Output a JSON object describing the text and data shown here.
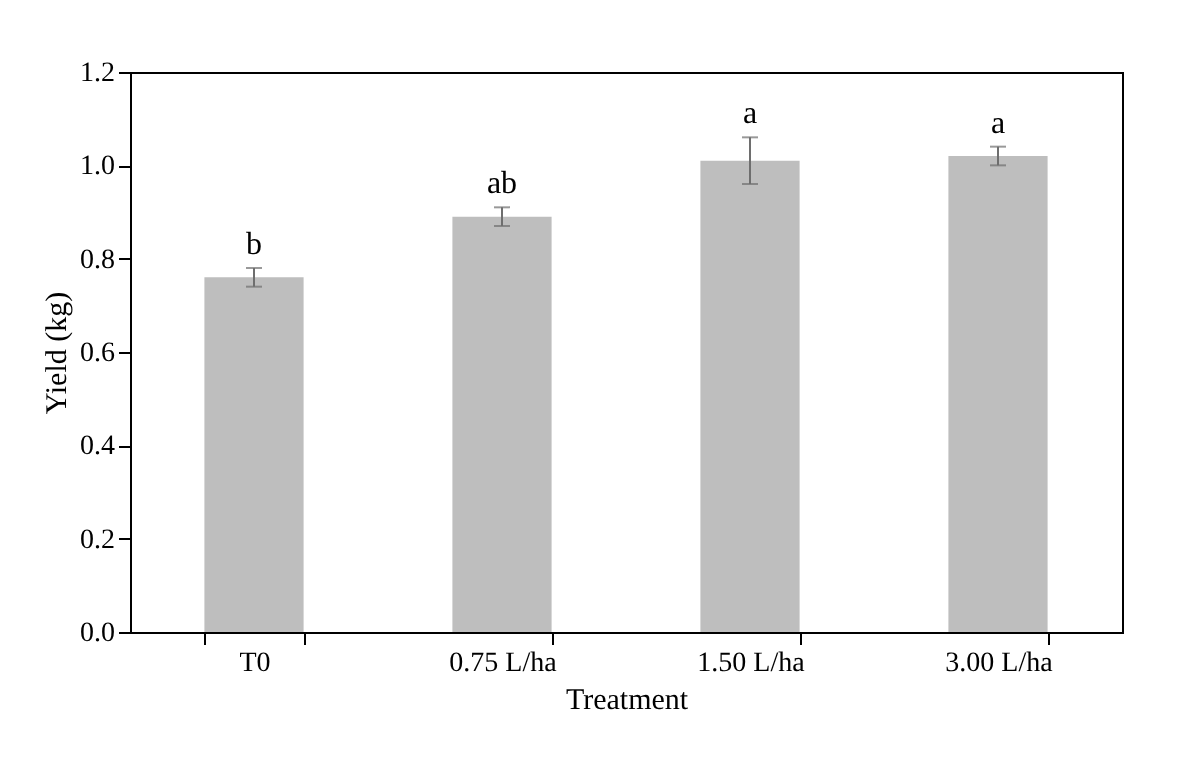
{
  "chart_data": {
    "type": "bar",
    "xlabel": "Treatment",
    "ylabel": "Yield (kg)",
    "categories": [
      "T0",
      "0.75 L/ha",
      "1.50 L/ha",
      "3.00 L/ha"
    ],
    "values": [
      0.76,
      0.89,
      1.01,
      1.02
    ],
    "color": "#bebebe",
    "errors": [
      0.02,
      0.02,
      0.05,
      0.02
    ],
    "ylim": [
      0,
      1.2
    ],
    "yticks": [
      {
        "value": 0,
        "label": "0.0"
      },
      {
        "value": 0.2,
        "label": "0.2"
      },
      {
        "value": 0.4,
        "label": "0.4"
      },
      {
        "value": 0.6,
        "label": "0.6"
      },
      {
        "value": 0.8,
        "label": "0.8"
      },
      {
        "value": 1,
        "label": "1.0"
      },
      {
        "value": 1.2,
        "label": "1.2"
      }
    ],
    "annotations": [
      "b",
      "ab",
      "a",
      "a"
    ],
    "grid": false
  }
}
